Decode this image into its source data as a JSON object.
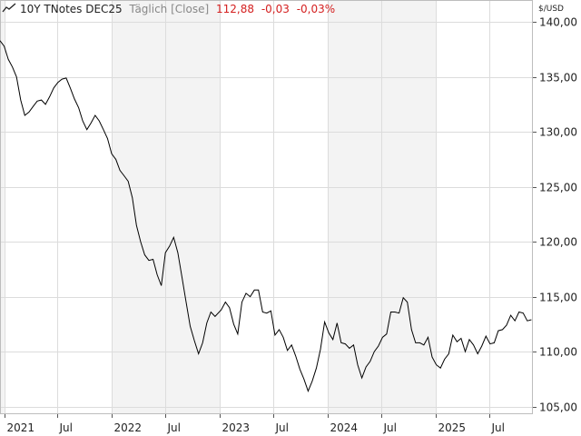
{
  "header": {
    "instrument": "10Y TNotes DEC25",
    "interval": "Täglich [Close]",
    "last": "112,88",
    "change": "-0,03",
    "change_pct": "-0,03%"
  },
  "colors": {
    "line": "#000000",
    "negative": "#d42020",
    "band": "#f3f3f3",
    "grid": "#dcdcdc",
    "frame": "#bdbdbd"
  },
  "chart_data": {
    "type": "line",
    "title": "10Y TNotes DEC25",
    "xlabel": "",
    "ylabel": "$/USD",
    "ylim": [
      104.3,
      142.0
    ],
    "xlim": [
      "2020-12-18",
      "2025-11-26"
    ],
    "y_ticks": [
      105,
      110,
      115,
      120,
      125,
      130,
      135,
      140
    ],
    "y_tick_labels": [
      "105,00",
      "110,00",
      "115,00",
      "120,00",
      "125,00",
      "130,00",
      "135,00",
      "140,00"
    ],
    "x_ticks": [
      {
        "date": "2021-01-01",
        "label": "2021"
      },
      {
        "date": "2021-07-01",
        "label": "Jul"
      },
      {
        "date": "2022-01-01",
        "label": "2022"
      },
      {
        "date": "2022-07-01",
        "label": "Jul"
      },
      {
        "date": "2023-01-01",
        "label": "2023"
      },
      {
        "date": "2023-07-01",
        "label": "Jul"
      },
      {
        "date": "2024-01-01",
        "label": "2024"
      },
      {
        "date": "2024-07-01",
        "label": "Jul"
      },
      {
        "date": "2025-01-01",
        "label": "2025"
      },
      {
        "date": "2025-07-01",
        "label": "Jul"
      }
    ],
    "grid": true,
    "series": [
      {
        "name": "10Y TNotes DEC25",
        "points": [
          [
            "2020-12-18",
            138.3
          ],
          [
            "2021-01-01",
            137.8
          ],
          [
            "2021-01-15",
            136.6
          ],
          [
            "2021-01-29",
            135.9
          ],
          [
            "2021-02-12",
            135.0
          ],
          [
            "2021-02-26",
            132.9
          ],
          [
            "2021-03-12",
            131.5
          ],
          [
            "2021-03-26",
            131.8
          ],
          [
            "2021-04-09",
            132.3
          ],
          [
            "2021-04-23",
            132.8
          ],
          [
            "2021-05-07",
            132.9
          ],
          [
            "2021-05-21",
            132.5
          ],
          [
            "2021-06-04",
            133.2
          ],
          [
            "2021-06-18",
            134.0
          ],
          [
            "2021-07-02",
            134.5
          ],
          [
            "2021-07-16",
            134.8
          ],
          [
            "2021-07-30",
            134.9
          ],
          [
            "2021-08-13",
            134.0
          ],
          [
            "2021-08-27",
            133.0
          ],
          [
            "2021-09-10",
            132.2
          ],
          [
            "2021-09-24",
            131.0
          ],
          [
            "2021-10-08",
            130.2
          ],
          [
            "2021-10-22",
            130.8
          ],
          [
            "2021-11-05",
            131.5
          ],
          [
            "2021-11-19",
            131.0
          ],
          [
            "2021-12-03",
            130.2
          ],
          [
            "2021-12-17",
            129.4
          ],
          [
            "2021-12-31",
            128.0
          ],
          [
            "2022-01-14",
            127.5
          ],
          [
            "2022-01-28",
            126.5
          ],
          [
            "2022-02-11",
            126.0
          ],
          [
            "2022-02-25",
            125.5
          ],
          [
            "2022-03-11",
            124.0
          ],
          [
            "2022-03-25",
            121.5
          ],
          [
            "2022-04-08",
            120.0
          ],
          [
            "2022-04-22",
            118.8
          ],
          [
            "2022-05-06",
            118.3
          ],
          [
            "2022-05-20",
            118.4
          ],
          [
            "2022-06-03",
            117.0
          ],
          [
            "2022-06-17",
            116.0
          ],
          [
            "2022-07-01",
            119.0
          ],
          [
            "2022-07-15",
            119.6
          ],
          [
            "2022-07-29",
            120.4
          ],
          [
            "2022-08-12",
            119.0
          ],
          [
            "2022-08-26",
            116.8
          ],
          [
            "2022-09-09",
            114.5
          ],
          [
            "2022-09-23",
            112.3
          ],
          [
            "2022-10-07",
            111.0
          ],
          [
            "2022-10-21",
            109.8
          ],
          [
            "2022-11-04",
            110.8
          ],
          [
            "2022-11-18",
            112.6
          ],
          [
            "2022-12-02",
            113.6
          ],
          [
            "2022-12-16",
            113.2
          ],
          [
            "2023-01-06",
            113.8
          ],
          [
            "2023-01-20",
            114.5
          ],
          [
            "2023-02-03",
            114.0
          ],
          [
            "2023-02-17",
            112.5
          ],
          [
            "2023-03-03",
            111.6
          ],
          [
            "2023-03-17",
            114.5
          ],
          [
            "2023-03-31",
            115.3
          ],
          [
            "2023-04-14",
            115.0
          ],
          [
            "2023-04-28",
            115.6
          ],
          [
            "2023-05-12",
            115.6
          ],
          [
            "2023-05-26",
            113.6
          ],
          [
            "2023-06-09",
            113.5
          ],
          [
            "2023-06-23",
            113.7
          ],
          [
            "2023-07-07",
            111.5
          ],
          [
            "2023-07-21",
            112.0
          ],
          [
            "2023-08-04",
            111.3
          ],
          [
            "2023-08-18",
            110.1
          ],
          [
            "2023-09-01",
            110.6
          ],
          [
            "2023-09-15",
            109.6
          ],
          [
            "2023-09-29",
            108.4
          ],
          [
            "2023-10-13",
            107.5
          ],
          [
            "2023-10-27",
            106.4
          ],
          [
            "2023-11-10",
            107.3
          ],
          [
            "2023-11-24",
            108.5
          ],
          [
            "2023-12-08",
            110.2
          ],
          [
            "2023-12-22",
            112.7
          ],
          [
            "2024-01-05",
            111.7
          ],
          [
            "2024-01-19",
            111.1
          ],
          [
            "2024-02-02",
            112.6
          ],
          [
            "2024-02-16",
            110.8
          ],
          [
            "2024-03-01",
            110.7
          ],
          [
            "2024-03-15",
            110.3
          ],
          [
            "2024-03-29",
            110.6
          ],
          [
            "2024-04-12",
            108.8
          ],
          [
            "2024-04-26",
            107.6
          ],
          [
            "2024-05-10",
            108.6
          ],
          [
            "2024-05-24",
            109.1
          ],
          [
            "2024-06-07",
            110.0
          ],
          [
            "2024-06-21",
            110.5
          ],
          [
            "2024-07-05",
            111.3
          ],
          [
            "2024-07-19",
            111.6
          ],
          [
            "2024-08-02",
            113.6
          ],
          [
            "2024-08-16",
            113.6
          ],
          [
            "2024-08-30",
            113.5
          ],
          [
            "2024-09-13",
            114.9
          ],
          [
            "2024-09-27",
            114.5
          ],
          [
            "2024-10-11",
            112.0
          ],
          [
            "2024-10-25",
            110.8
          ],
          [
            "2024-11-08",
            110.8
          ],
          [
            "2024-11-22",
            110.6
          ],
          [
            "2024-12-06",
            111.3
          ],
          [
            "2024-12-20",
            109.5
          ],
          [
            "2025-01-03",
            108.8
          ],
          [
            "2025-01-17",
            108.5
          ],
          [
            "2025-01-31",
            109.3
          ],
          [
            "2025-02-14",
            109.8
          ],
          [
            "2025-02-28",
            111.5
          ],
          [
            "2025-03-14",
            110.9
          ],
          [
            "2025-03-28",
            111.2
          ],
          [
            "2025-04-11",
            110.0
          ],
          [
            "2025-04-25",
            111.1
          ],
          [
            "2025-05-09",
            110.6
          ],
          [
            "2025-05-23",
            109.8
          ],
          [
            "2025-06-06",
            110.5
          ],
          [
            "2025-06-20",
            111.4
          ],
          [
            "2025-07-04",
            110.7
          ],
          [
            "2025-07-18",
            110.8
          ],
          [
            "2025-08-01",
            111.9
          ],
          [
            "2025-08-15",
            112.0
          ],
          [
            "2025-08-29",
            112.4
          ],
          [
            "2025-09-12",
            113.3
          ],
          [
            "2025-09-26",
            112.8
          ],
          [
            "2025-10-10",
            113.6
          ],
          [
            "2025-10-24",
            113.5
          ],
          [
            "2025-11-07",
            112.8
          ],
          [
            "2025-11-21",
            112.9
          ]
        ]
      }
    ]
  }
}
